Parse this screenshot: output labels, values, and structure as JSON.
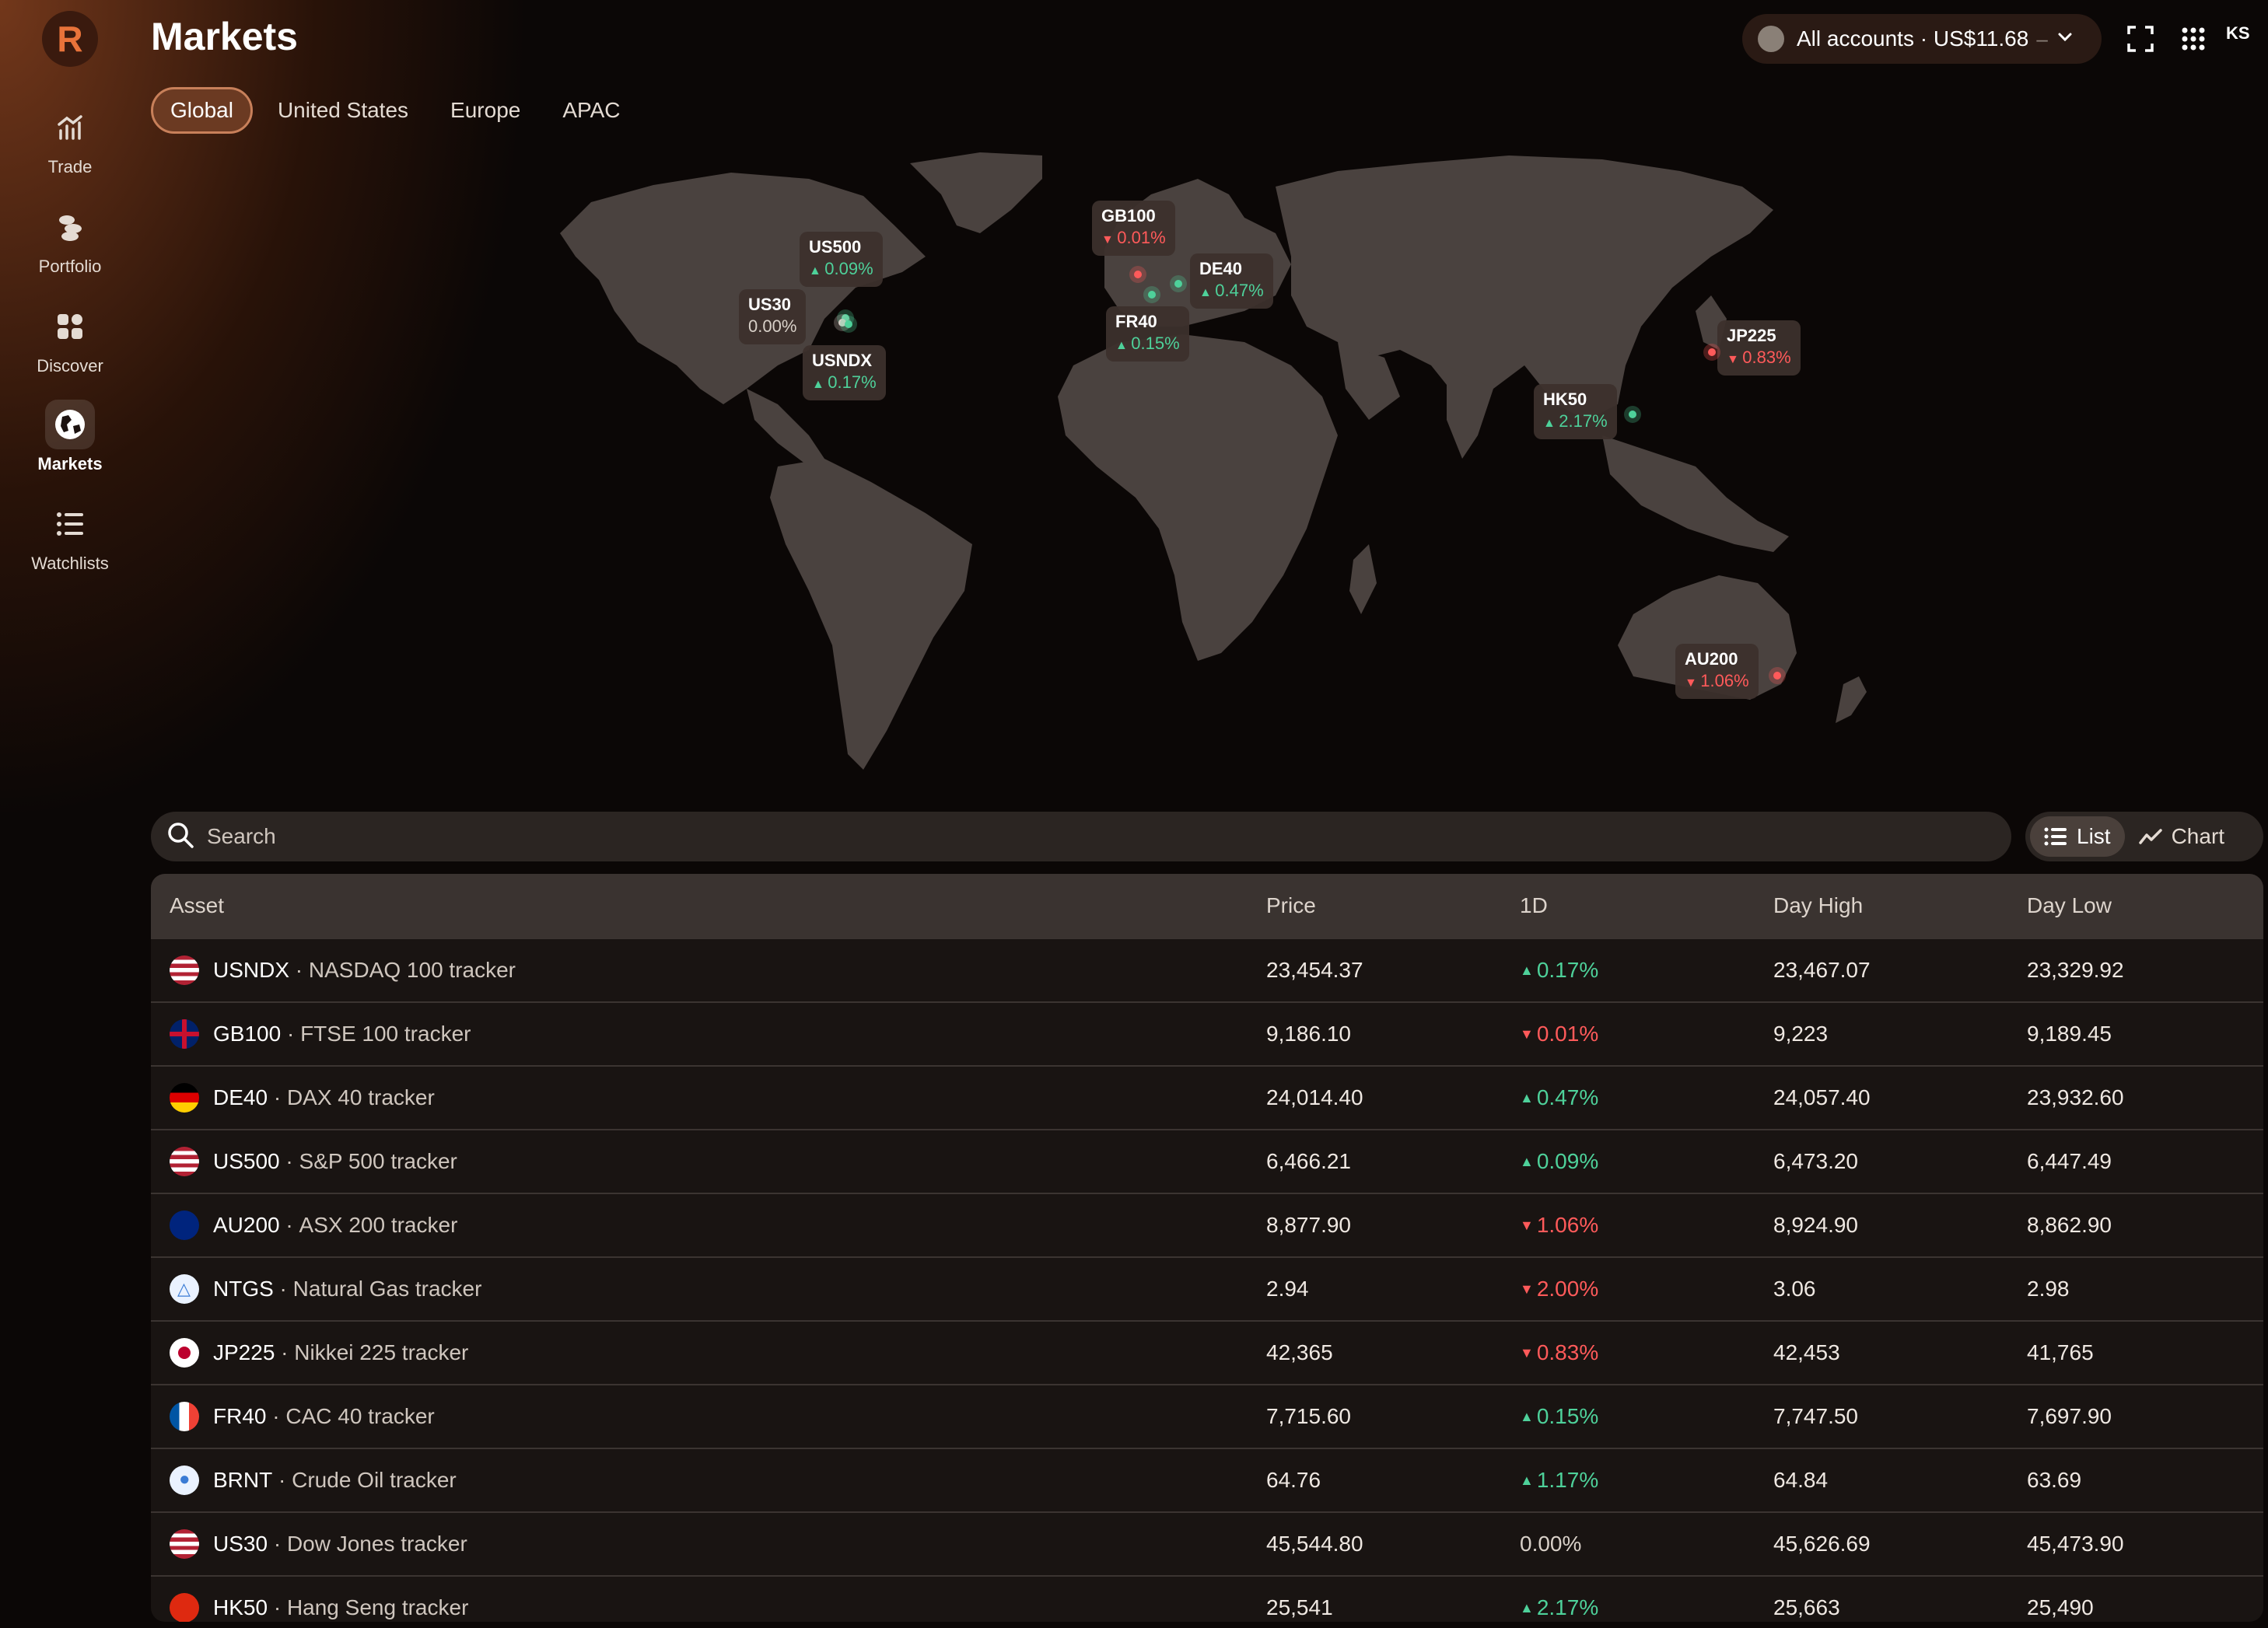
{
  "app": {
    "logo_letter": "R",
    "accent": "#e8733a"
  },
  "sidebar": {
    "items": [
      {
        "label": "Trade",
        "icon": "chart-bar-icon",
        "active": false
      },
      {
        "label": "Portfolio",
        "icon": "coins-icon",
        "active": false
      },
      {
        "label": "Discover",
        "icon": "grid-icon",
        "active": false
      },
      {
        "label": "Markets",
        "icon": "globe-icon",
        "active": true
      },
      {
        "label": "Watchlists",
        "icon": "list-icon",
        "active": false
      }
    ]
  },
  "header": {
    "title": "Markets",
    "tabs": [
      {
        "label": "Global",
        "active": true
      },
      {
        "label": "United States",
        "active": false
      },
      {
        "label": "Europe",
        "active": false
      },
      {
        "label": "APAC",
        "active": false
      }
    ],
    "account": {
      "label": "All accounts · US$11.68",
      "suffix": "–"
    },
    "avatar": "KS"
  },
  "map_markers": [
    {
      "name": "US500",
      "change": "0.09%",
      "direction": "up"
    },
    {
      "name": "US30",
      "change": "0.00%",
      "direction": "flat"
    },
    {
      "name": "USNDX",
      "change": "0.17%",
      "direction": "up"
    },
    {
      "name": "GB100",
      "change": "0.01%",
      "direction": "down"
    },
    {
      "name": "DE40",
      "change": "0.47%",
      "direction": "up"
    },
    {
      "name": "FR40",
      "change": "0.15%",
      "direction": "up"
    },
    {
      "name": "JP225",
      "change": "0.83%",
      "direction": "down"
    },
    {
      "name": "HK50",
      "change": "2.17%",
      "direction": "up"
    },
    {
      "name": "AU200",
      "change": "1.06%",
      "direction": "down"
    }
  ],
  "search": {
    "placeholder": "Search"
  },
  "view_toggle": {
    "list_label": "List",
    "chart_label": "Chart",
    "active": "List"
  },
  "table": {
    "headers": {
      "asset": "Asset",
      "price": "Price",
      "change": "1D",
      "high": "Day High",
      "low": "Day Low"
    },
    "rows": [
      {
        "symbol": "USNDX",
        "name": "NASDAQ 100 tracker",
        "flag": "us",
        "badge": "100",
        "price": "23,454.37",
        "change": "0.17%",
        "direction": "up",
        "high": "23,467.07",
        "low": "23,329.92"
      },
      {
        "symbol": "GB100",
        "name": "FTSE 100 tracker",
        "flag": "gb",
        "badge": "100",
        "price": "9,186.10",
        "change": "0.01%",
        "direction": "down",
        "high": "9,223",
        "low": "9,189.45"
      },
      {
        "symbol": "DE40",
        "name": "DAX 40 tracker",
        "flag": "de",
        "badge": "40",
        "price": "24,014.40",
        "change": "0.47%",
        "direction": "up",
        "high": "24,057.40",
        "low": "23,932.60"
      },
      {
        "symbol": "US500",
        "name": "S&P 500 tracker",
        "flag": "us",
        "badge": "500",
        "price": "6,466.21",
        "change": "0.09%",
        "direction": "up",
        "high": "6,473.20",
        "low": "6,447.49"
      },
      {
        "symbol": "AU200",
        "name": "ASX 200 tracker",
        "flag": "au",
        "badge": "200",
        "price": "8,877.90",
        "change": "1.06%",
        "direction": "down",
        "high": "8,924.90",
        "low": "8,862.90"
      },
      {
        "symbol": "NTGS",
        "name": "Natural Gas tracker",
        "flag": "gas",
        "badge": "",
        "price": "2.94",
        "change": "2.00%",
        "direction": "down",
        "high": "3.06",
        "low": "2.98"
      },
      {
        "symbol": "JP225",
        "name": "Nikkei 225 tracker",
        "flag": "jp",
        "badge": "225",
        "price": "42,365",
        "change": "0.83%",
        "direction": "down",
        "high": "42,453",
        "low": "41,765"
      },
      {
        "symbol": "FR40",
        "name": "CAC 40 tracker",
        "flag": "fr",
        "badge": "40",
        "price": "7,715.60",
        "change": "0.15%",
        "direction": "up",
        "high": "7,747.50",
        "low": "7,697.90"
      },
      {
        "symbol": "BRNT",
        "name": "Crude Oil tracker",
        "flag": "oil",
        "badge": "",
        "price": "64.76",
        "change": "1.17%",
        "direction": "up",
        "high": "64.84",
        "low": "63.69"
      },
      {
        "symbol": "US30",
        "name": "Dow Jones tracker",
        "flag": "us",
        "badge": "30",
        "price": "45,544.80",
        "change": "0.00%",
        "direction": "flat",
        "high": "45,626.69",
        "low": "45,473.90"
      },
      {
        "symbol": "HK50",
        "name": "Hang Seng tracker",
        "flag": "cn",
        "badge": "50",
        "price": "25,541",
        "change": "2.17%",
        "direction": "up",
        "high": "25,663",
        "low": "25,490"
      }
    ]
  },
  "colors": {
    "up": "#4ed19a",
    "down": "#ff5a5a",
    "flat": "#d8d0c8",
    "land": "#4a423f"
  }
}
